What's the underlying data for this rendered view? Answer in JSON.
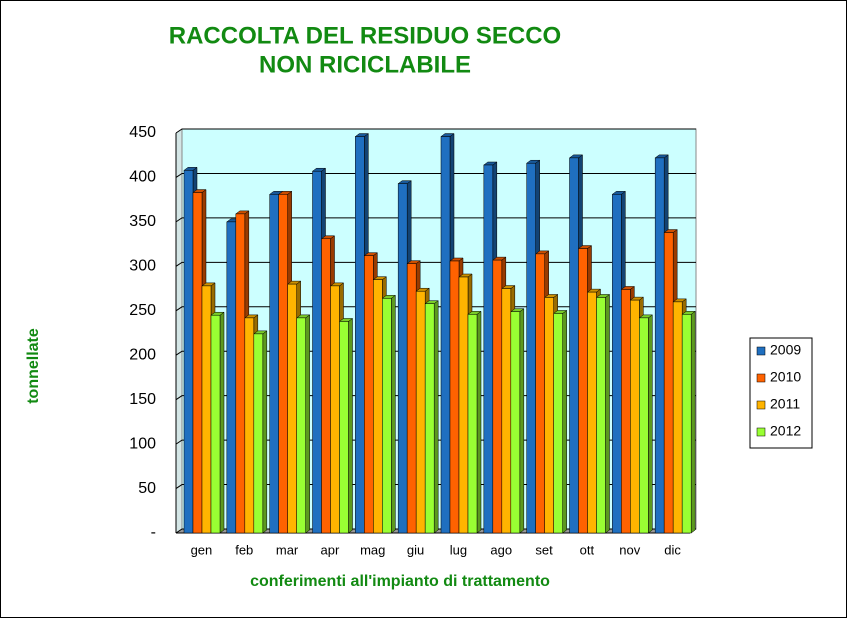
{
  "chart_data": {
    "type": "bar",
    "title": [
      "RACCOLTA DEL RESIDUO SECCO",
      "NON RICICLABILE"
    ],
    "x_label": "conferimenti all'impianto di trattamento",
    "y_label": "tonnellate",
    "categories": [
      "gen",
      "feb",
      "mar",
      "apr",
      "mag",
      "giu",
      "lug",
      "ago",
      "set",
      "ott",
      "nov",
      "dic"
    ],
    "series": [
      {
        "name": "2009",
        "color": "#1f6fc0",
        "values": [
          408,
          350,
          381,
          407,
          446,
          393,
          446,
          414,
          416,
          422,
          381,
          422
        ]
      },
      {
        "name": "2010",
        "color": "#ff6200",
        "values": [
          383,
          359,
          381,
          331,
          312,
          303,
          306,
          307,
          314,
          320,
          274,
          338
        ]
      },
      {
        "name": "2011",
        "color": "#ffb400",
        "values": [
          278,
          242,
          280,
          278,
          285,
          272,
          288,
          275,
          265,
          271,
          262,
          260
        ]
      },
      {
        "name": "2012",
        "color": "#99ff33",
        "values": [
          245,
          224,
          242,
          238,
          264,
          258,
          246,
          249,
          247,
          265,
          242,
          246
        ]
      }
    ],
    "ylim": [
      0,
      450
    ],
    "yticks": [
      {
        "value": 0,
        "label": "-"
      },
      50,
      100,
      150,
      200,
      250,
      300,
      350,
      400,
      450
    ],
    "grid": true,
    "legend": "right"
  }
}
